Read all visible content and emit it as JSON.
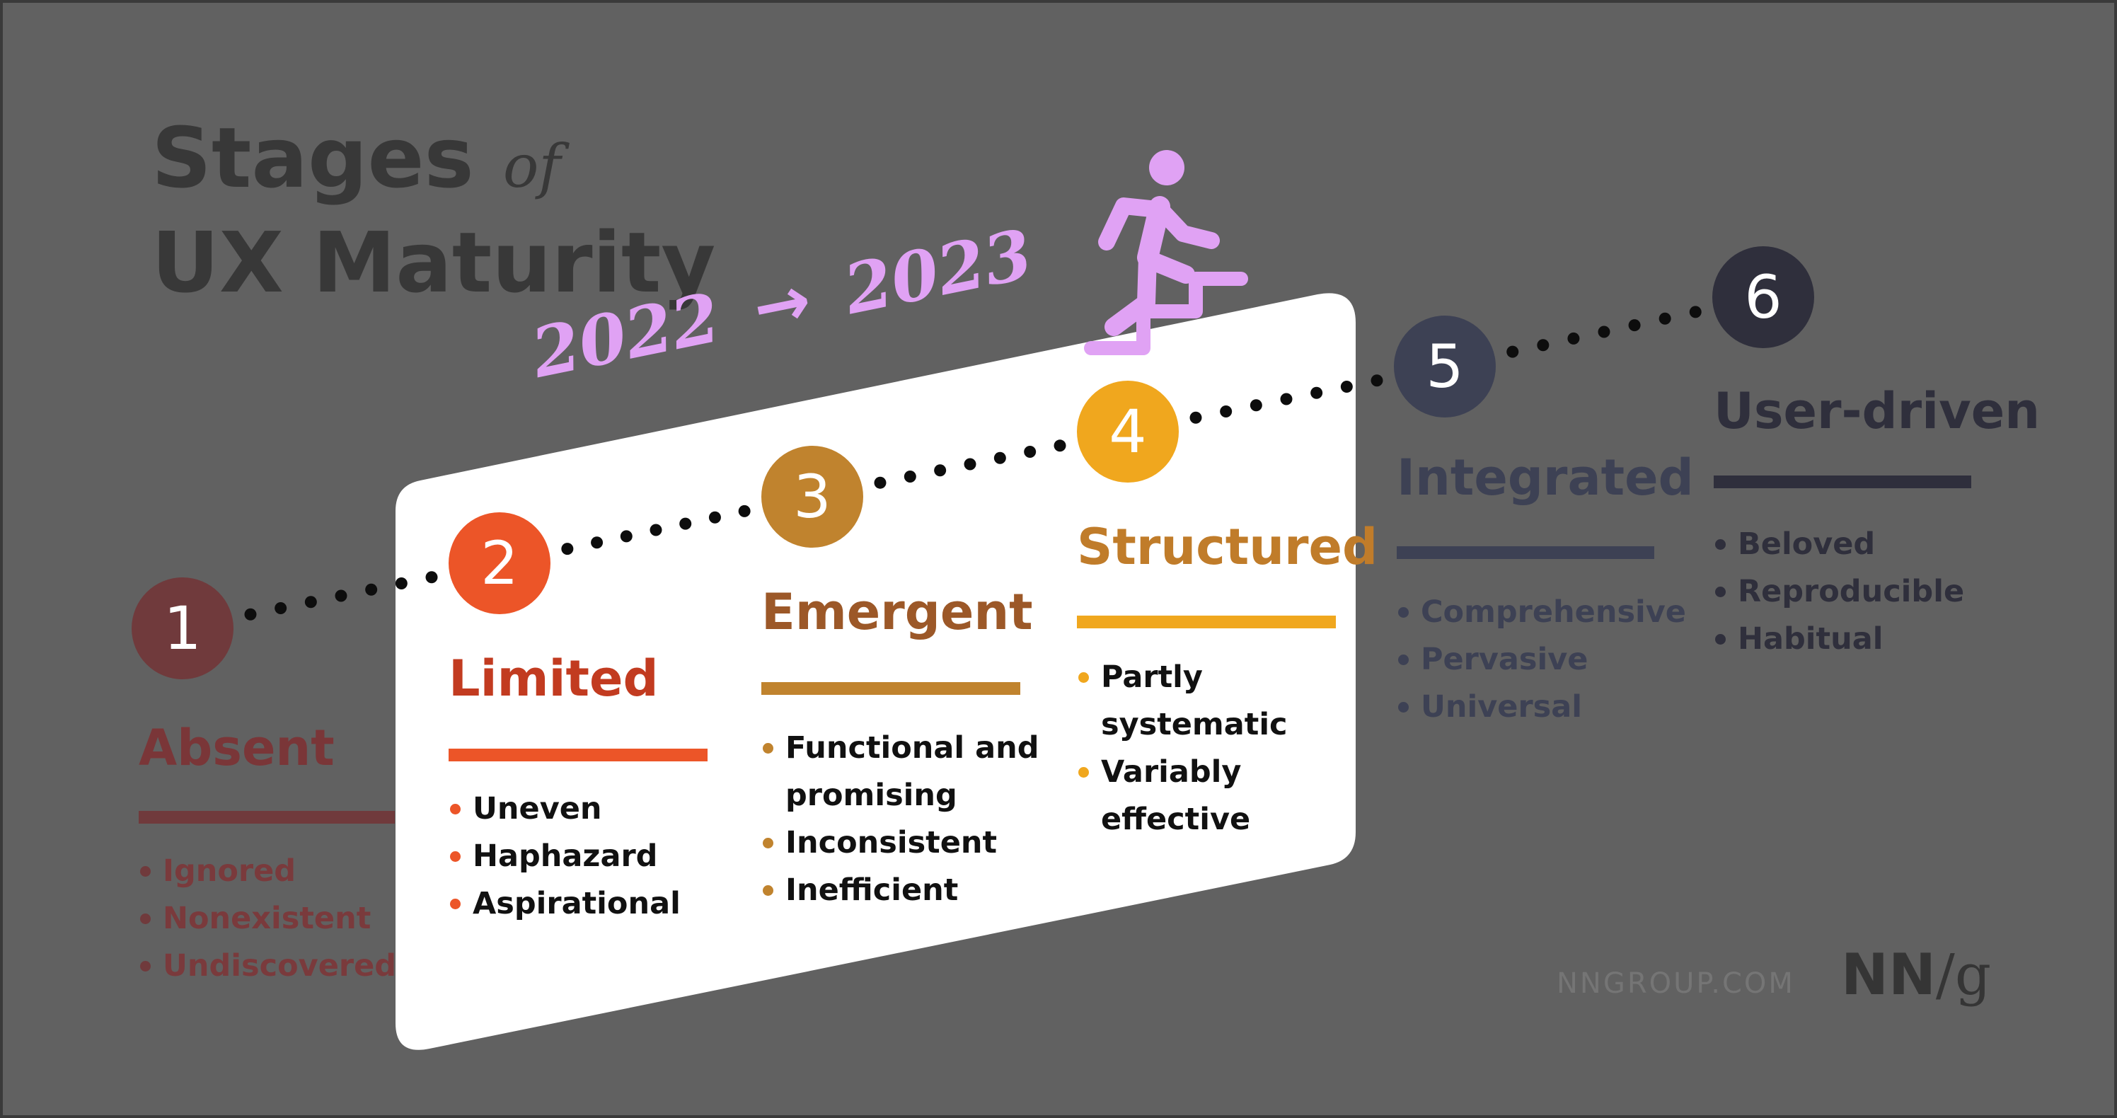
{
  "title": {
    "line1": "Stages",
    "of": "of",
    "line2": "UX Maturity"
  },
  "years": {
    "from": "2022",
    "arrow": "→",
    "to": "2023"
  },
  "colors": {
    "background": "#616161",
    "card": "#ffffff",
    "title": "#383838",
    "year": "#e0a2f4",
    "figure": "#e0a2f4",
    "dots": "#0d0d0d"
  },
  "stages": [
    {
      "num": "1",
      "name": "Absent",
      "circle_color": "#703a3c",
      "name_color": "#7a3638",
      "bar_color": "#703a3c",
      "text_color": "#7a3a3c",
      "bullets": [
        "Ignored",
        "Nonexistent",
        "Undiscovered"
      ]
    },
    {
      "num": "2",
      "name": "Limited",
      "circle_color": "#ec5528",
      "name_color": "#c23b20",
      "bar_color": "#ec5528",
      "text_color": "#111111",
      "bullets": [
        "Uneven",
        "Haphazard",
        "Aspirational"
      ]
    },
    {
      "num": "3",
      "name": "Emergent",
      "circle_color": "#c0832e",
      "name_color": "#9c5828",
      "bar_color": "#c0832e",
      "text_color": "#111111",
      "bullets": [
        "Functional and",
        "promising",
        "Inconsistent",
        "Inefficient"
      ]
    },
    {
      "num": "4",
      "name": "Structured",
      "circle_color": "#f0a71e",
      "name_color": "#c07c2a",
      "bar_color": "#f0a71e",
      "text_color": "#111111",
      "bullets": [
        "Partly",
        "systematic",
        "Variably",
        "effective"
      ]
    },
    {
      "num": "5",
      "name": "Integrated",
      "circle_color": "#3d4154",
      "name_color": "#3d4154",
      "bar_color": "#3d4154",
      "text_color": "#3d4154",
      "bullets": [
        "Comprehensive",
        "Pervasive",
        "Universal"
      ]
    },
    {
      "num": "6",
      "name": "User-driven",
      "circle_color": "#2f2f3c",
      "name_color": "#2f2f3c",
      "bar_color": "#2f2f3c",
      "text_color": "#2f2f3c",
      "bullets": [
        "Beloved",
        "Reproducible",
        "Habitual"
      ]
    }
  ],
  "icons": {
    "figure": "person-climbing-stairs-icon"
  },
  "footer": {
    "url": "NNGROUP.COM",
    "logo_nn": "NN",
    "logo_slash": "/",
    "logo_g": "g"
  }
}
